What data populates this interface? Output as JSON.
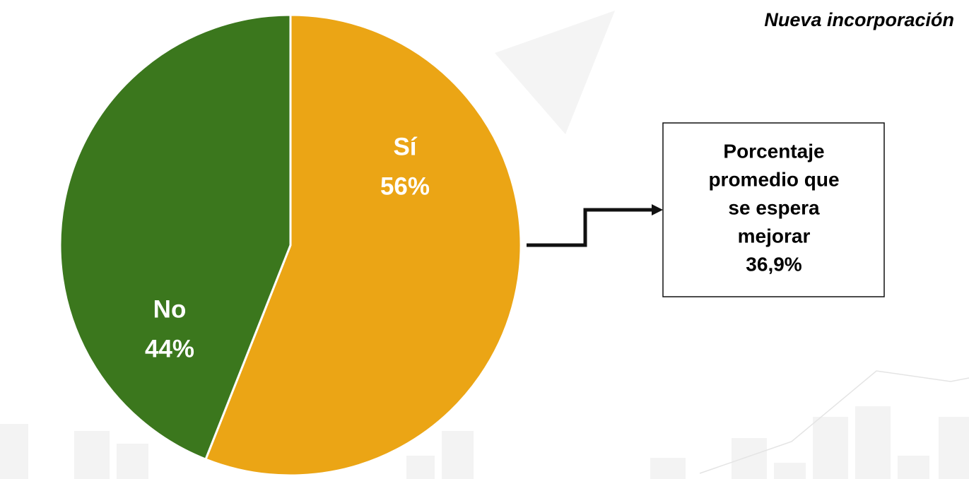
{
  "chart_data": {
    "type": "pie",
    "title": "Nueva incorporación",
    "categories": [
      "Sí",
      "No"
    ],
    "values": [
      56,
      44
    ],
    "value_labels": [
      "56%",
      "44%"
    ],
    "colors": [
      "#eba515",
      "#3b771d"
    ],
    "annotation": [
      "Porcentaje",
      "promedio que",
      "se espera",
      "mejorar",
      "36,9%"
    ]
  }
}
